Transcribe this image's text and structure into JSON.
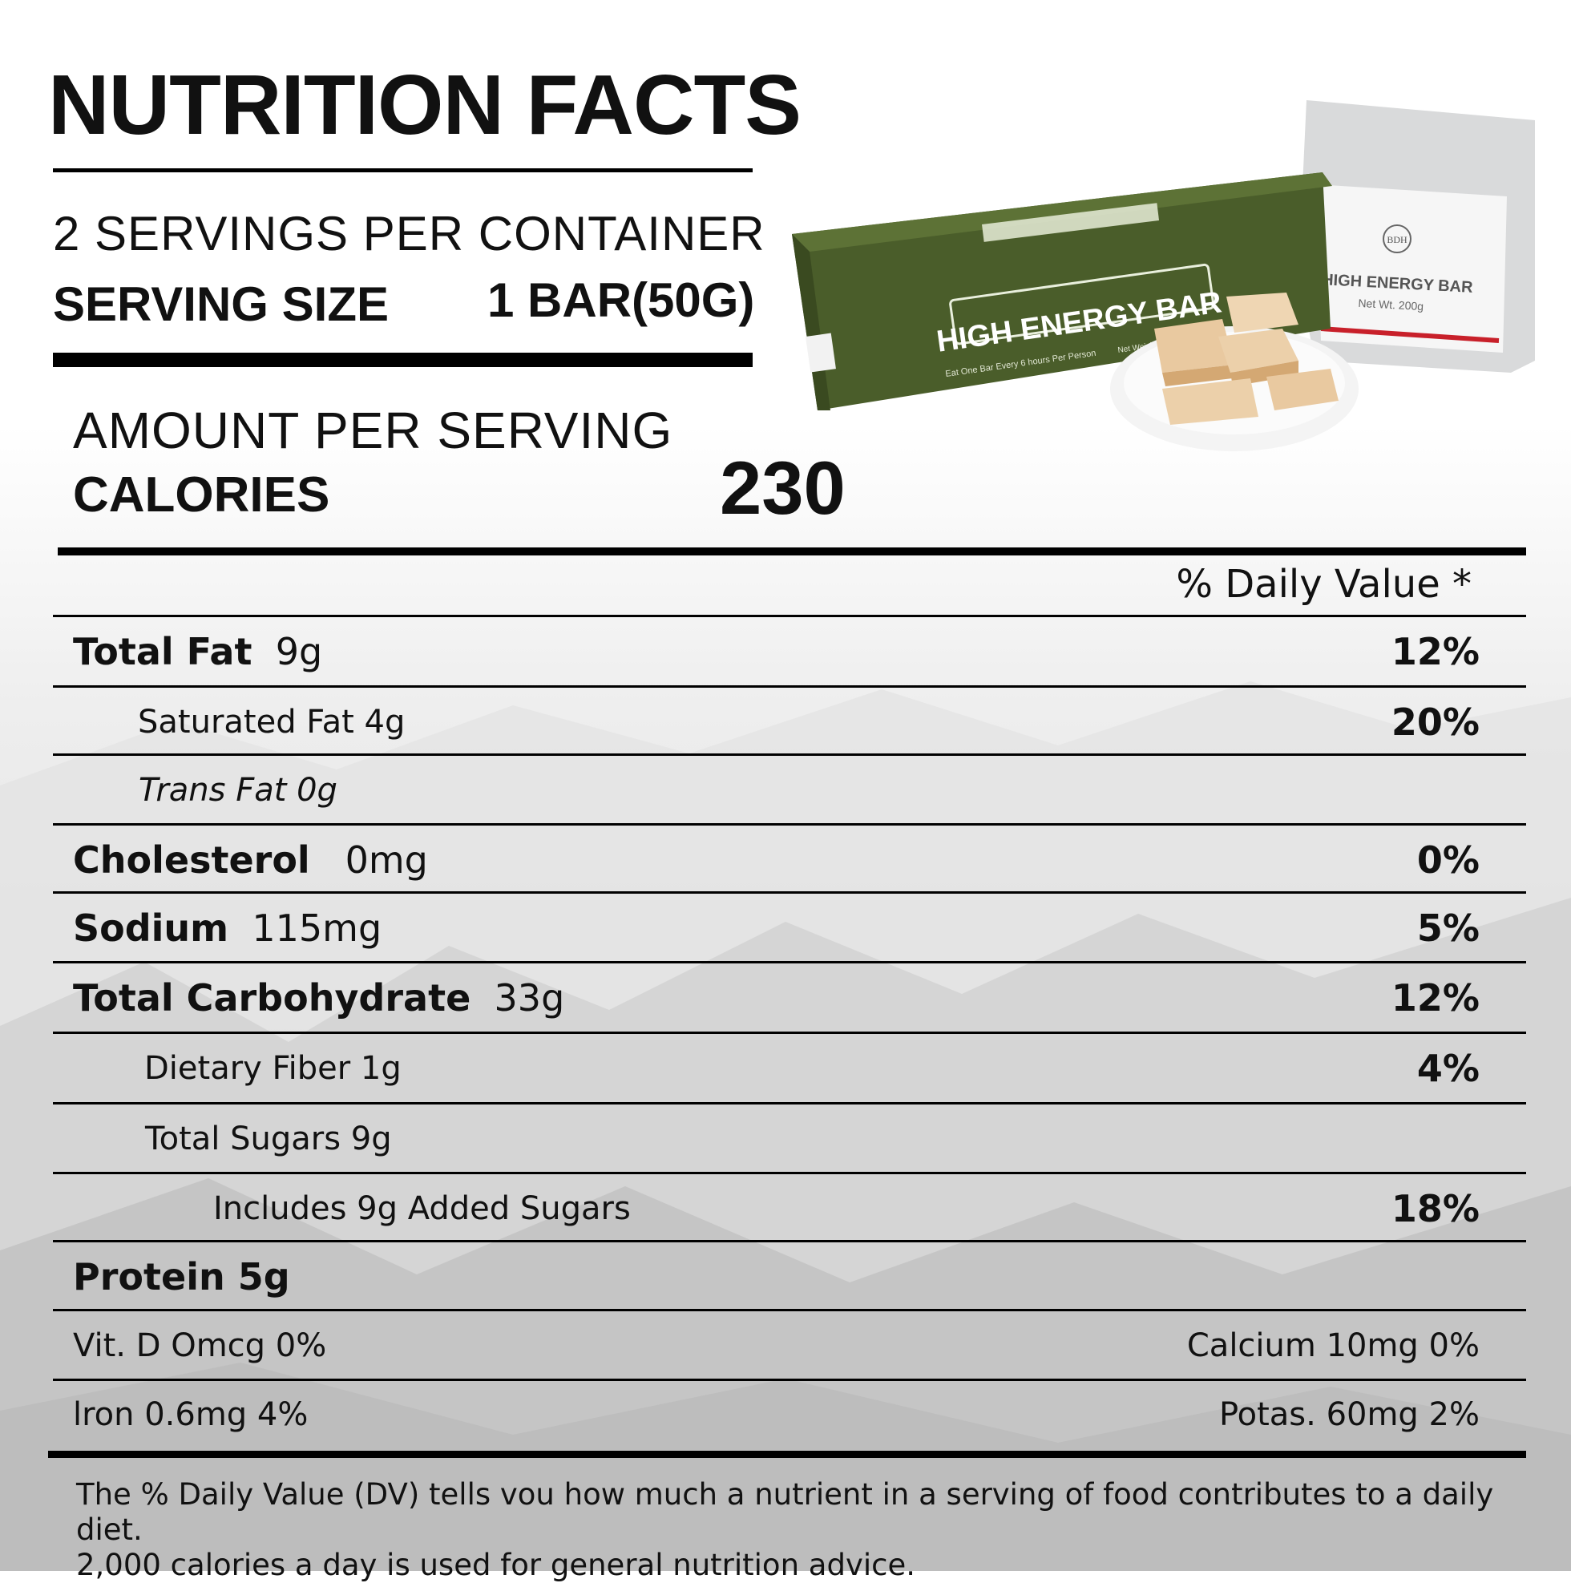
{
  "title": "NUTRITION FACTS",
  "servings_per_container": "2 SERVINGS PER CONTAINER",
  "serving_size_label": "SERVING SIZE",
  "serving_size_value": "1 BAR(50G)",
  "amount_per_serving": "AMOUNT PER SERVING",
  "calories_label": "CALORIES",
  "calories_value": "230",
  "daily_value_header": "% Daily Value *",
  "nutrients": [
    {
      "name": "Total Fat",
      "amount": "9g",
      "dv": "12%"
    },
    {
      "name": "Saturated Fat 4g",
      "dv": "20%"
    },
    {
      "name": "Trans Fat 0g"
    },
    {
      "name": "Cholesterol",
      "amount": "0mg",
      "dv": "0%"
    },
    {
      "name": "Sodium",
      "amount": "115mg",
      "dv": "5%"
    },
    {
      "name": "Total Carbohydrate",
      "amount": "33g",
      "dv": "12%"
    },
    {
      "name": "Dietary Fiber 1g",
      "dv": "4%"
    },
    {
      "name": "Total Sugars 9g"
    },
    {
      "name": "Includes 9g Added Sugars",
      "dv": "18%"
    },
    {
      "name": "Protein 5g"
    }
  ],
  "vitamins": {
    "row1_left": "Vit. D Omcg 0%",
    "row1_right": "Calcium 10mg 0%",
    "row2_left": "lron 0.6mg 4%",
    "row2_right": "Potas. 60mg 2%"
  },
  "footnote_line1": "The % Daily Value (DV) tells vou how much a nutrient in a serving of food contributes to a daily diet.",
  "footnote_line2": "2,000 calories a day is used for general nutrition advice.",
  "product": {
    "tin_label": "HIGH ENERGY BAR",
    "tin_subtext": "Eat One Bar Every 6 hours Per Person",
    "tin_weight": "Net Weight 42.3 oz / 1.2 kg",
    "pouch_brand": "BDH",
    "pouch_label": "HIGH ENERGY BAR",
    "pouch_weight": "Net Wt. 200g",
    "tin_color": "#4a5d2a",
    "pouch_color": "#d9dadb"
  }
}
